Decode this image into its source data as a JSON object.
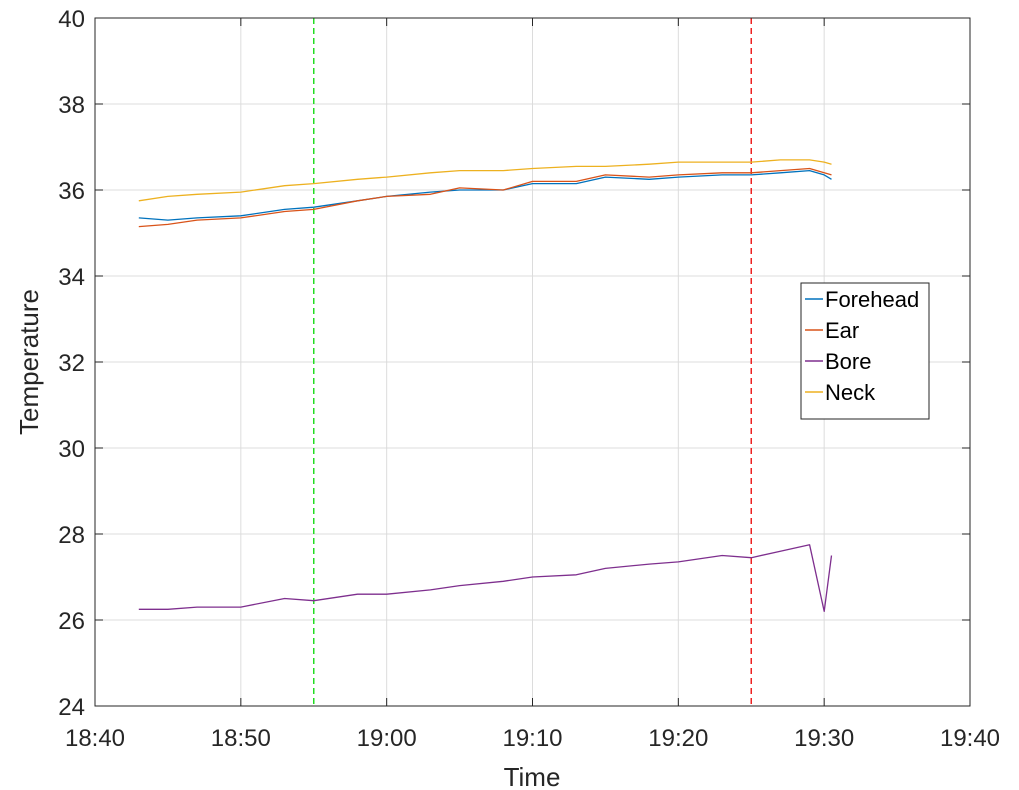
{
  "chart_data": {
    "type": "line",
    "xlabel": "Time",
    "ylabel": "Temperature",
    "x_range_minutes_of_day": [
      1120,
      1180
    ],
    "x_tick_labels": [
      "18:40",
      "18:50",
      "19:00",
      "19:10",
      "19:20",
      "19:30",
      "19:40"
    ],
    "y_range": [
      24,
      40
    ],
    "y_ticks": [
      24,
      26,
      28,
      30,
      32,
      34,
      36,
      38,
      40
    ],
    "grid": true,
    "legend": "right",
    "vertical_lines": [
      {
        "x": "18:55",
        "color": "#22dd22",
        "style": "dashed"
      },
      {
        "x": "19:25",
        "color": "#ee2222",
        "style": "dashed"
      }
    ],
    "x": [
      "18:43",
      "18:45",
      "18:47",
      "18:50",
      "18:53",
      "18:55",
      "18:58",
      "19:00",
      "19:03",
      "19:05",
      "19:08",
      "19:10",
      "19:13",
      "19:15",
      "19:18",
      "19:20",
      "19:23",
      "19:25",
      "19:27",
      "19:29",
      "19:30",
      "19:30:30"
    ],
    "series": [
      {
        "name": "Forehead",
        "color": "#0072bd",
        "values": [
          35.35,
          35.3,
          35.35,
          35.4,
          35.55,
          35.6,
          35.75,
          35.85,
          35.95,
          36.0,
          36.0,
          36.15,
          36.15,
          36.3,
          36.25,
          36.3,
          36.35,
          36.35,
          36.4,
          36.45,
          36.35,
          36.25
        ]
      },
      {
        "name": "Ear",
        "color": "#d95319",
        "values": [
          35.15,
          35.2,
          35.3,
          35.35,
          35.5,
          35.55,
          35.75,
          35.85,
          35.9,
          36.05,
          36.0,
          36.2,
          36.2,
          36.35,
          36.3,
          36.35,
          36.4,
          36.4,
          36.45,
          36.5,
          36.4,
          36.35
        ]
      },
      {
        "name": "Bore",
        "color": "#7e2f8e",
        "values": [
          26.25,
          26.25,
          26.3,
          26.3,
          26.5,
          26.45,
          26.6,
          26.6,
          26.7,
          26.8,
          26.9,
          27.0,
          27.05,
          27.2,
          27.3,
          27.35,
          27.5,
          27.45,
          27.6,
          27.75,
          26.2,
          27.5
        ]
      },
      {
        "name": "Neck",
        "color": "#edb120",
        "values": [
          35.75,
          35.85,
          35.9,
          35.95,
          36.1,
          36.15,
          36.25,
          36.3,
          36.4,
          36.45,
          36.45,
          36.5,
          36.55,
          36.55,
          36.6,
          36.65,
          36.65,
          36.65,
          36.7,
          36.7,
          36.65,
          36.6
        ]
      }
    ]
  }
}
